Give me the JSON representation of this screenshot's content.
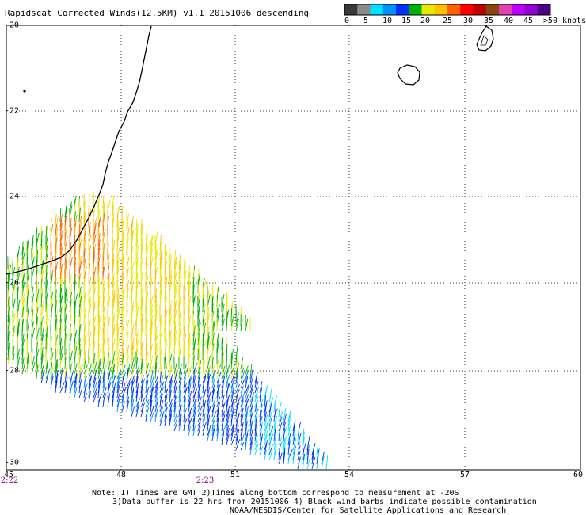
{
  "title": "Rapidscat Corrected Winds(12.5KM) v1.1 20151006 descending",
  "colorbar": {
    "swatches": [
      "#3a3a3a",
      "#8a8a8a",
      "#00e0ff",
      "#0090ff",
      "#0030ff",
      "#00b000",
      "#e8e800",
      "#ffc000",
      "#ff6000",
      "#ff0000",
      "#c00000",
      "#8b4513",
      "#e040b0",
      "#c000ff",
      "#9000d0",
      "#4b0082"
    ],
    "labels": [
      "0",
      "5",
      "10",
      "15",
      "20",
      "25",
      "30",
      "35",
      "40",
      "45",
      ">50 knots"
    ]
  },
  "axes": {
    "x_ticks": [
      "48",
      "51",
      "54",
      "57",
      "60"
    ],
    "x_left_label": "45",
    "y_ticks": [
      "-20",
      "-22",
      "-24",
      "-26",
      "-28",
      "-30"
    ],
    "xlim": [
      45,
      60
    ],
    "ylim": [
      -30,
      -20
    ]
  },
  "times": [
    "2:22",
    "2:23"
  ],
  "notes": [
    "Note: 1) Times are GMT 2)Times along bottom correspond to measurement at -20S",
    "3)Data buffer is 22 hrs from 20151006 4) Black wind barbs indicate possible contamination",
    "NOAA/NESDIS/Center for Satellite Applications and Research"
  ]
}
